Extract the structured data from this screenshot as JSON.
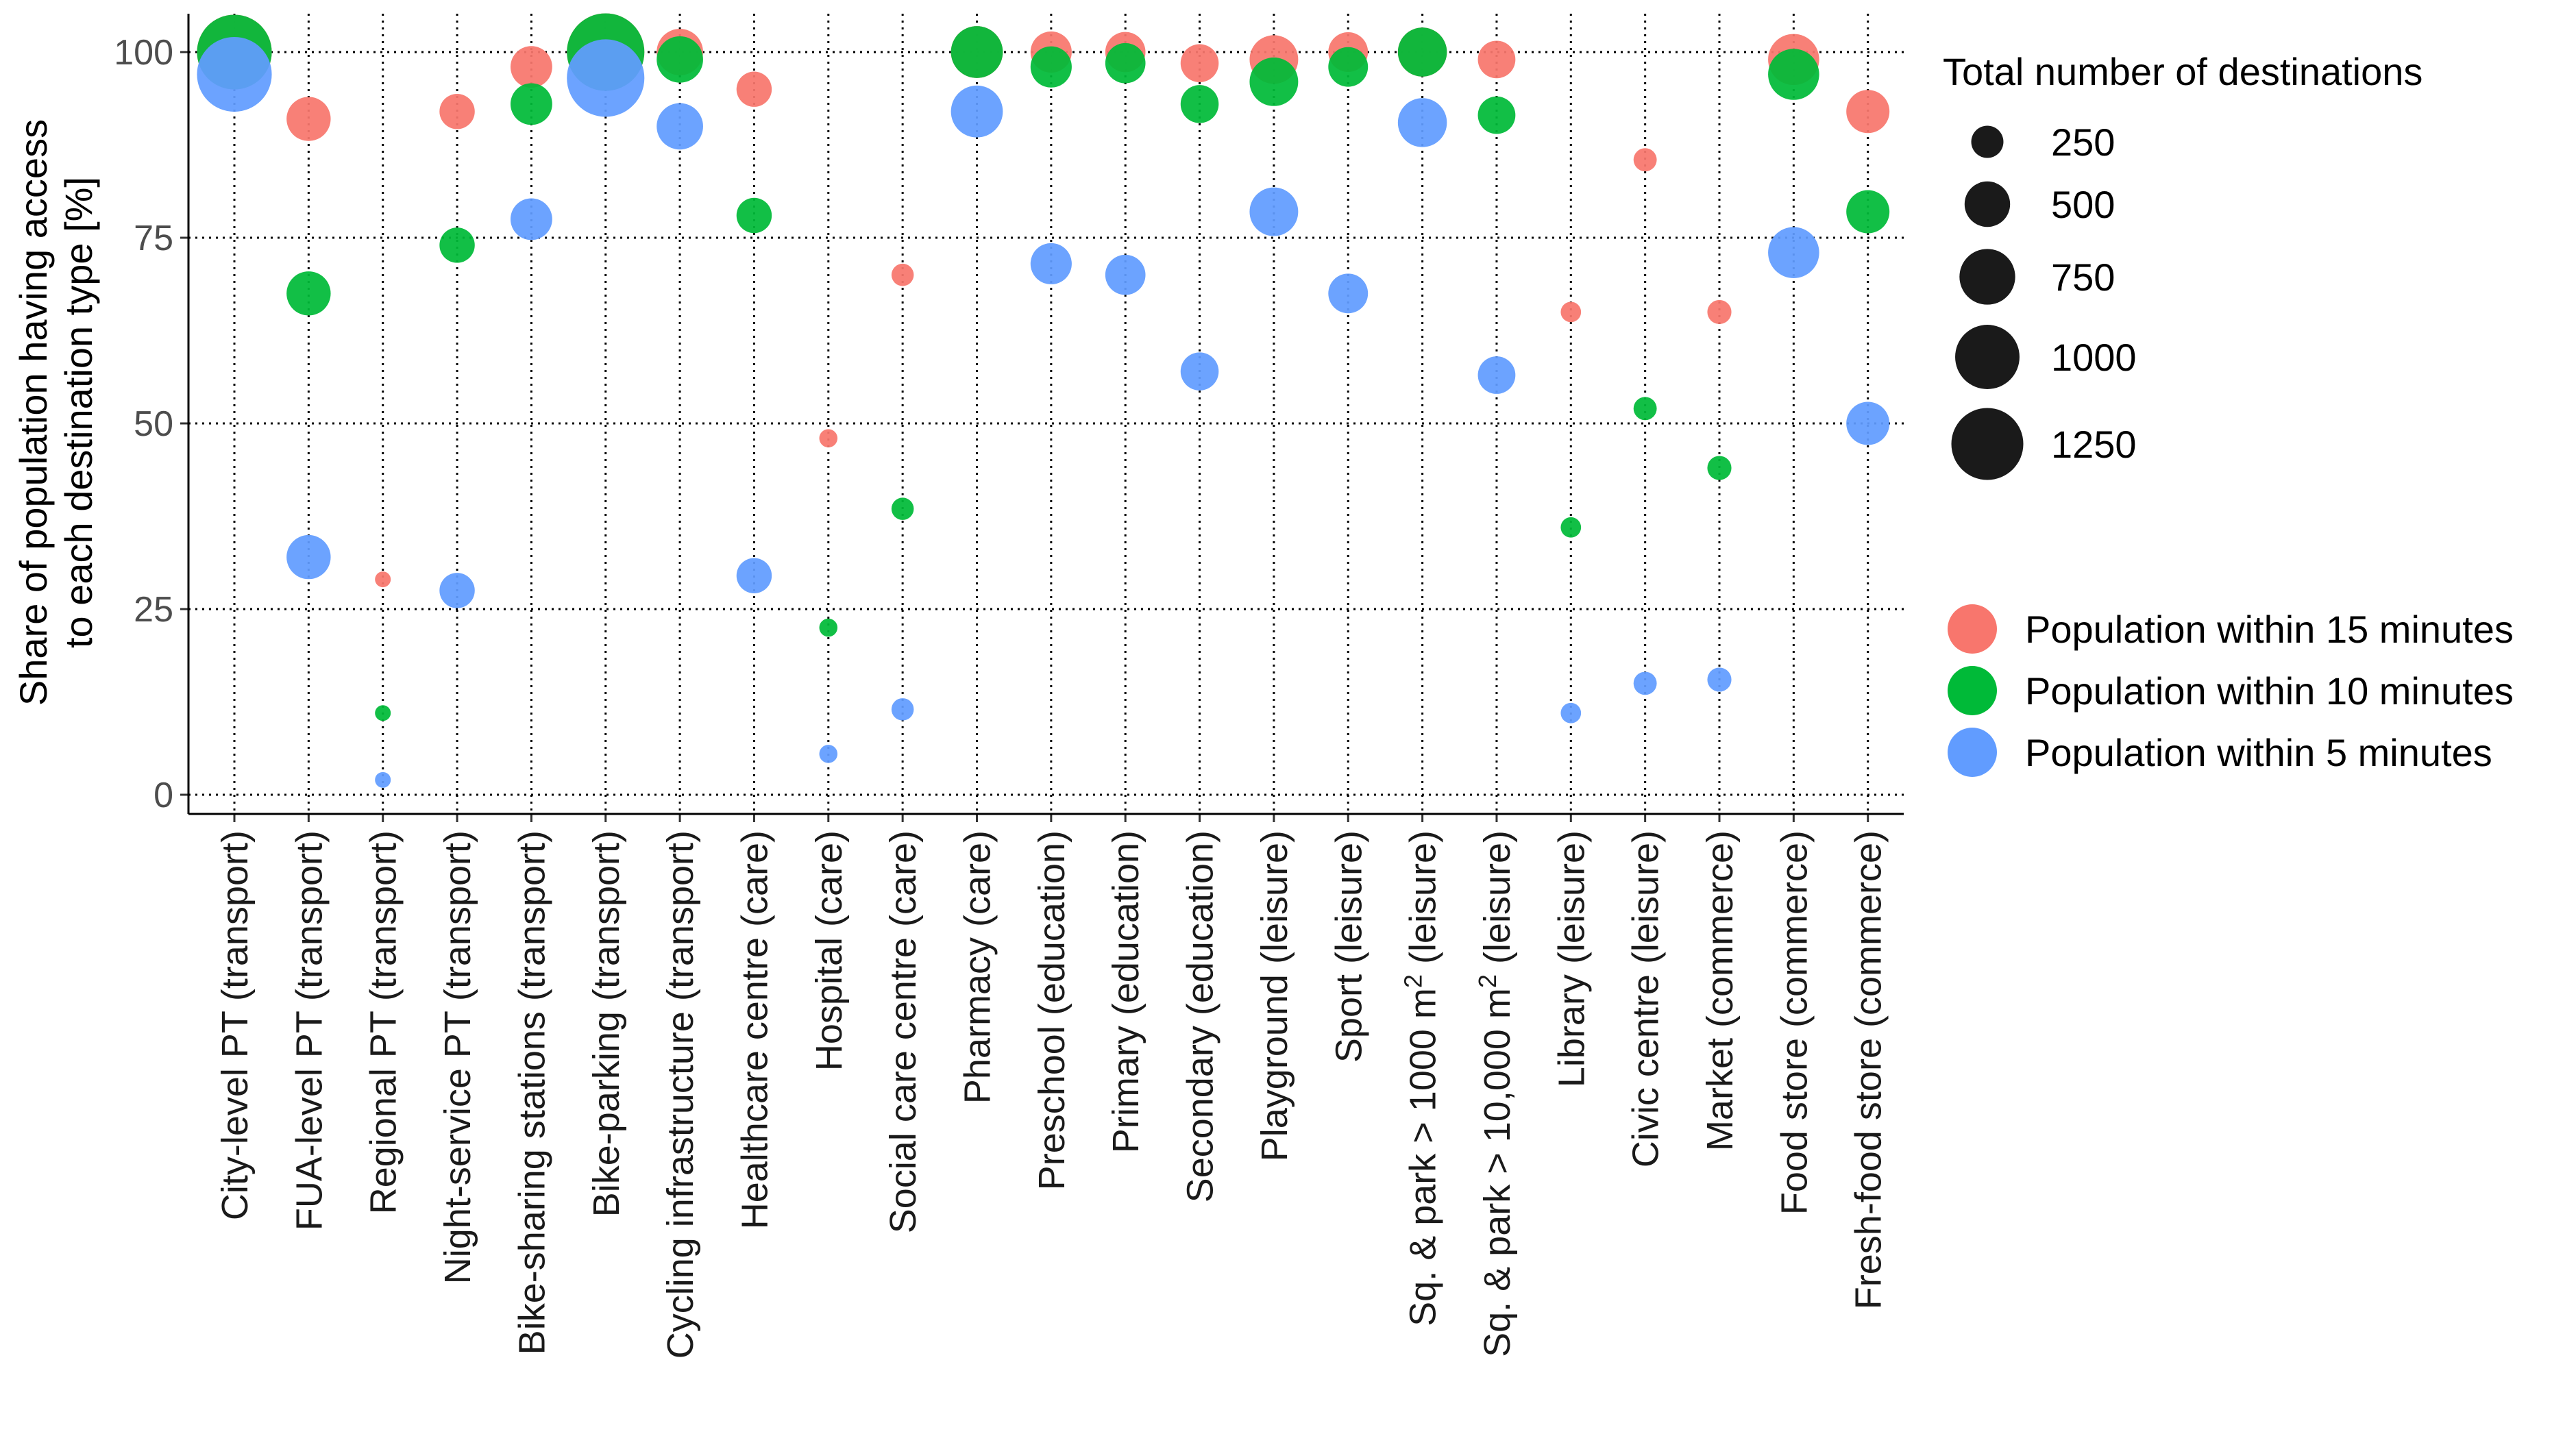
{
  "chart_data": {
    "type": "scatter",
    "ylabel_line1": "Share of population having access",
    "ylabel_line2": "to each destination type [%]",
    "ylim": [
      0,
      100
    ],
    "yticks": [
      0,
      25,
      50,
      75,
      100
    ],
    "grid": true,
    "categories": [
      {
        "text": "City-level PT (transport)"
      },
      {
        "text": "FUA-level PT (transport)"
      },
      {
        "text": "Regional PT (transport)"
      },
      {
        "text": "Night-service PT (transport)"
      },
      {
        "text": "Bike-sharing stations (transport)"
      },
      {
        "text": "Bike-parking (transport)"
      },
      {
        "text": "Cycling infrastructure (transport)"
      },
      {
        "text": "Healthcare centre (care)"
      },
      {
        "text": "Hospital (care)"
      },
      {
        "text": "Social care centre (care)"
      },
      {
        "text": "Pharmacy (care)"
      },
      {
        "text": "Preschool (education)"
      },
      {
        "text": "Primary (education)"
      },
      {
        "text": "Secondary (education)"
      },
      {
        "text": "Playground (leisure)"
      },
      {
        "text": "Sport (leisure)"
      },
      {
        "pre": "Sq. & park > 1000 m",
        "sup": "2",
        "post": " (leisure)"
      },
      {
        "pre": "Sq. & park > 10,000 m",
        "sup": "2",
        "post": " (leisure)"
      },
      {
        "text": "Library (leisure)"
      },
      {
        "text": "Civic centre (leisure)"
      },
      {
        "text": "Market (commerce)"
      },
      {
        "text": "Food store (commerce)"
      },
      {
        "text": "Fresh-food store (commerce)"
      }
    ],
    "total_destinations": [
      1350,
      470,
      60,
      300,
      420,
      1450,
      520,
      300,
      80,
      120,
      650,
      410,
      390,
      350,
      570,
      380,
      580,
      340,
      100,
      130,
      140,
      630,
      450
    ],
    "series": [
      {
        "name": "Population within 15 minutes",
        "color": "#F8766D",
        "values": [
          100,
          91,
          29,
          92,
          98,
          100,
          100,
          95,
          48,
          70,
          100,
          100,
          100,
          98.5,
          99,
          100,
          100,
          99,
          65,
          85.5,
          65,
          99,
          92
        ]
      },
      {
        "name": "Population within 10 minutes",
        "color": "#00BA38",
        "values": [
          100,
          67.5,
          11,
          74,
          93,
          100,
          99,
          78,
          22.5,
          38.5,
          100,
          98,
          98.5,
          93,
          96,
          98,
          100,
          91.5,
          36,
          52,
          44,
          97,
          78.5
        ]
      },
      {
        "name": "Population within 5 minutes",
        "color": "#619CFF",
        "values": [
          97,
          32,
          2,
          27.5,
          77.5,
          96.5,
          90,
          29.5,
          5.5,
          11.5,
          92,
          71.5,
          70,
          57,
          78.5,
          67.5,
          90.5,
          56.5,
          11,
          15,
          15.5,
          73,
          50
        ]
      }
    ],
    "size_legend": {
      "title": "Total number of destinations",
      "values": [
        250,
        500,
        750,
        1000,
        1250
      ]
    }
  }
}
